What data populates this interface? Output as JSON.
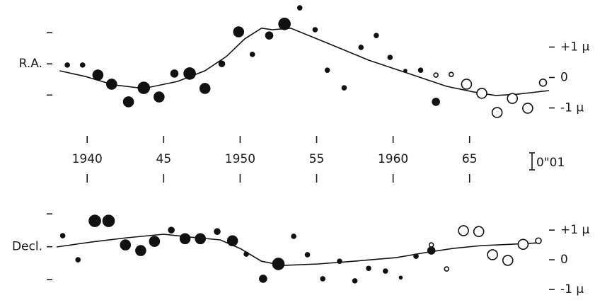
{
  "chart_data": [
    {
      "type": "scatter",
      "ylabel": "R.A.",
      "xlim": [
        1934.3,
        1973.2
      ],
      "xticks": [
        1940,
        {
          "value": 1945,
          "label": "45"
        },
        1950,
        {
          "value": 1955,
          "label": "55"
        },
        1960,
        {
          "value": 1965,
          "label": "65"
        }
      ],
      "ylim": [
        -1.5,
        2.5
      ],
      "yticks": [
        {
          "value": 1,
          "label": "+1 μ"
        },
        0,
        {
          "value": -1,
          "label": "-1 μ"
        }
      ],
      "y2lim": [
        -3.8,
        4
      ],
      "y2ticks": [
        -2,
        0,
        2
      ],
      "series": [
        {
          "color": "#111111",
          "filled": true,
          "x": [
            1938.7,
            1939.7,
            1940.7,
            1941.6,
            1942.7,
            1943.7,
            1944.7,
            1945.7,
            1946.7,
            1947.7,
            1948.8,
            1949.9,
            1950.8,
            1951.9,
            1952.9,
            1953.9,
            1954.9,
            1955.7,
            1956.8,
            1957.9,
            1958.9,
            1959.8,
            1960.8,
            1961.8,
            1962.8
          ],
          "values": [
            0.41,
            0.41,
            0.08,
            -0.22,
            -0.8,
            -0.34,
            -0.64,
            0.13,
            0.13,
            -0.36,
            0.45,
            1.5,
            0.76,
            1.38,
            1.76,
            2.29,
            1.57,
            0.24,
            -0.34,
            0.99,
            1.38,
            0.66,
            0.22,
            0.24,
            -0.8
          ],
          "sizes": [
            3,
            3,
            7,
            7,
            7,
            8,
            7,
            5,
            8,
            7,
            4,
            7,
            3,
            5,
            8,
            3,
            3,
            3,
            3,
            3,
            3,
            3,
            2,
            3,
            5
          ]
        },
        {
          "color": "#111111",
          "filled": false,
          "x": [
            1962.8,
            1963.8,
            1964.8,
            1965.8,
            1966.8,
            1967.8,
            1968.8,
            1969.8
          ],
          "values": [
            0.08,
            0.1,
            -0.22,
            -0.52,
            -1.15,
            -0.69,
            -1.01,
            -0.17
          ],
          "sizes": [
            3,
            3,
            7,
            7,
            7,
            7,
            7,
            5
          ]
        }
      ],
      "curve": {
        "color": "#111111",
        "x": [
          1938.2,
          1939.9,
          1941.7,
          1943.7,
          1945.9,
          1947.7,
          1949.1,
          1950.3,
          1951.4,
          1952.1,
          1953.3,
          1955.6,
          1958.4,
          1961.2,
          1963.5,
          1965.3,
          1966.7,
          1968.1,
          1970.2
        ],
        "values": [
          0.22,
          0.03,
          -0.24,
          -0.36,
          -0.13,
          0.22,
          0.69,
          1.27,
          1.62,
          1.57,
          1.62,
          1.15,
          0.57,
          0.1,
          -0.29,
          -0.48,
          -0.59,
          -0.55,
          -0.43
        ]
      },
      "scale_label": "0\"01"
    },
    {
      "type": "scatter",
      "ylabel": "Decl.",
      "xlim": [
        1934.3,
        1973.2
      ],
      "ylim": [
        -1.5,
        2.1
      ],
      "yticks": [
        {
          "value": 1,
          "label": "+1 μ"
        },
        0,
        {
          "value": -1,
          "label": "-1 μ"
        }
      ],
      "y2lim": [
        -3.5,
        3.0
      ],
      "y2ticks": [
        -2,
        0,
        2
      ],
      "series": [
        {
          "color": "#111111",
          "filled": true,
          "x": [
            1938.4,
            1939.4,
            1940.5,
            1941.4,
            1942.5,
            1943.5,
            1944.4,
            1945.5,
            1946.4,
            1947.4,
            1948.5,
            1949.5,
            1950.4,
            1951.5,
            1952.5,
            1953.5,
            1954.4,
            1955.4,
            1956.5,
            1957.5,
            1958.4,
            1959.5,
            1960.5,
            1961.5,
            1962.5
          ],
          "values": [
            0.81,
            0.0,
            1.31,
            1.31,
            0.5,
            0.31,
            0.62,
            1.0,
            0.71,
            0.71,
            0.95,
            0.64,
            0.19,
            -0.64,
            -0.14,
            0.79,
            0.17,
            -0.64,
            -0.05,
            -0.71,
            -0.29,
            -0.38,
            -0.6,
            0.12,
            0.31
          ],
          "sizes": [
            3,
            3,
            8,
            8,
            7,
            7,
            7,
            4,
            7,
            7,
            4,
            7,
            3,
            5,
            8,
            3,
            3,
            3,
            3,
            3,
            3,
            3,
            2,
            3,
            5
          ]
        },
        {
          "color": "#111111",
          "filled": false,
          "x": [
            1962.5,
            1963.5,
            1964.6,
            1965.6,
            1966.5,
            1967.5,
            1968.5,
            1969.5
          ],
          "values": [
            0.5,
            -0.31,
            0.98,
            0.95,
            0.17,
            -0.02,
            0.52,
            0.64
          ],
          "sizes": [
            3,
            3,
            7,
            7,
            7,
            7,
            7,
            4
          ]
        }
      ],
      "curve": {
        "color": "#111111",
        "x": [
          1938.0,
          1940.3,
          1942.6,
          1945.0,
          1946.8,
          1948.7,
          1950.0,
          1951.4,
          1952.8,
          1955.1,
          1957.4,
          1960.2,
          1962.1,
          1963.9,
          1965.8,
          1967.6,
          1969.5
        ],
        "values": [
          0.43,
          0.6,
          0.74,
          0.86,
          0.76,
          0.67,
          0.38,
          -0.05,
          -0.19,
          -0.14,
          -0.05,
          0.07,
          0.24,
          0.38,
          0.48,
          0.52,
          0.57
        ]
      }
    }
  ]
}
